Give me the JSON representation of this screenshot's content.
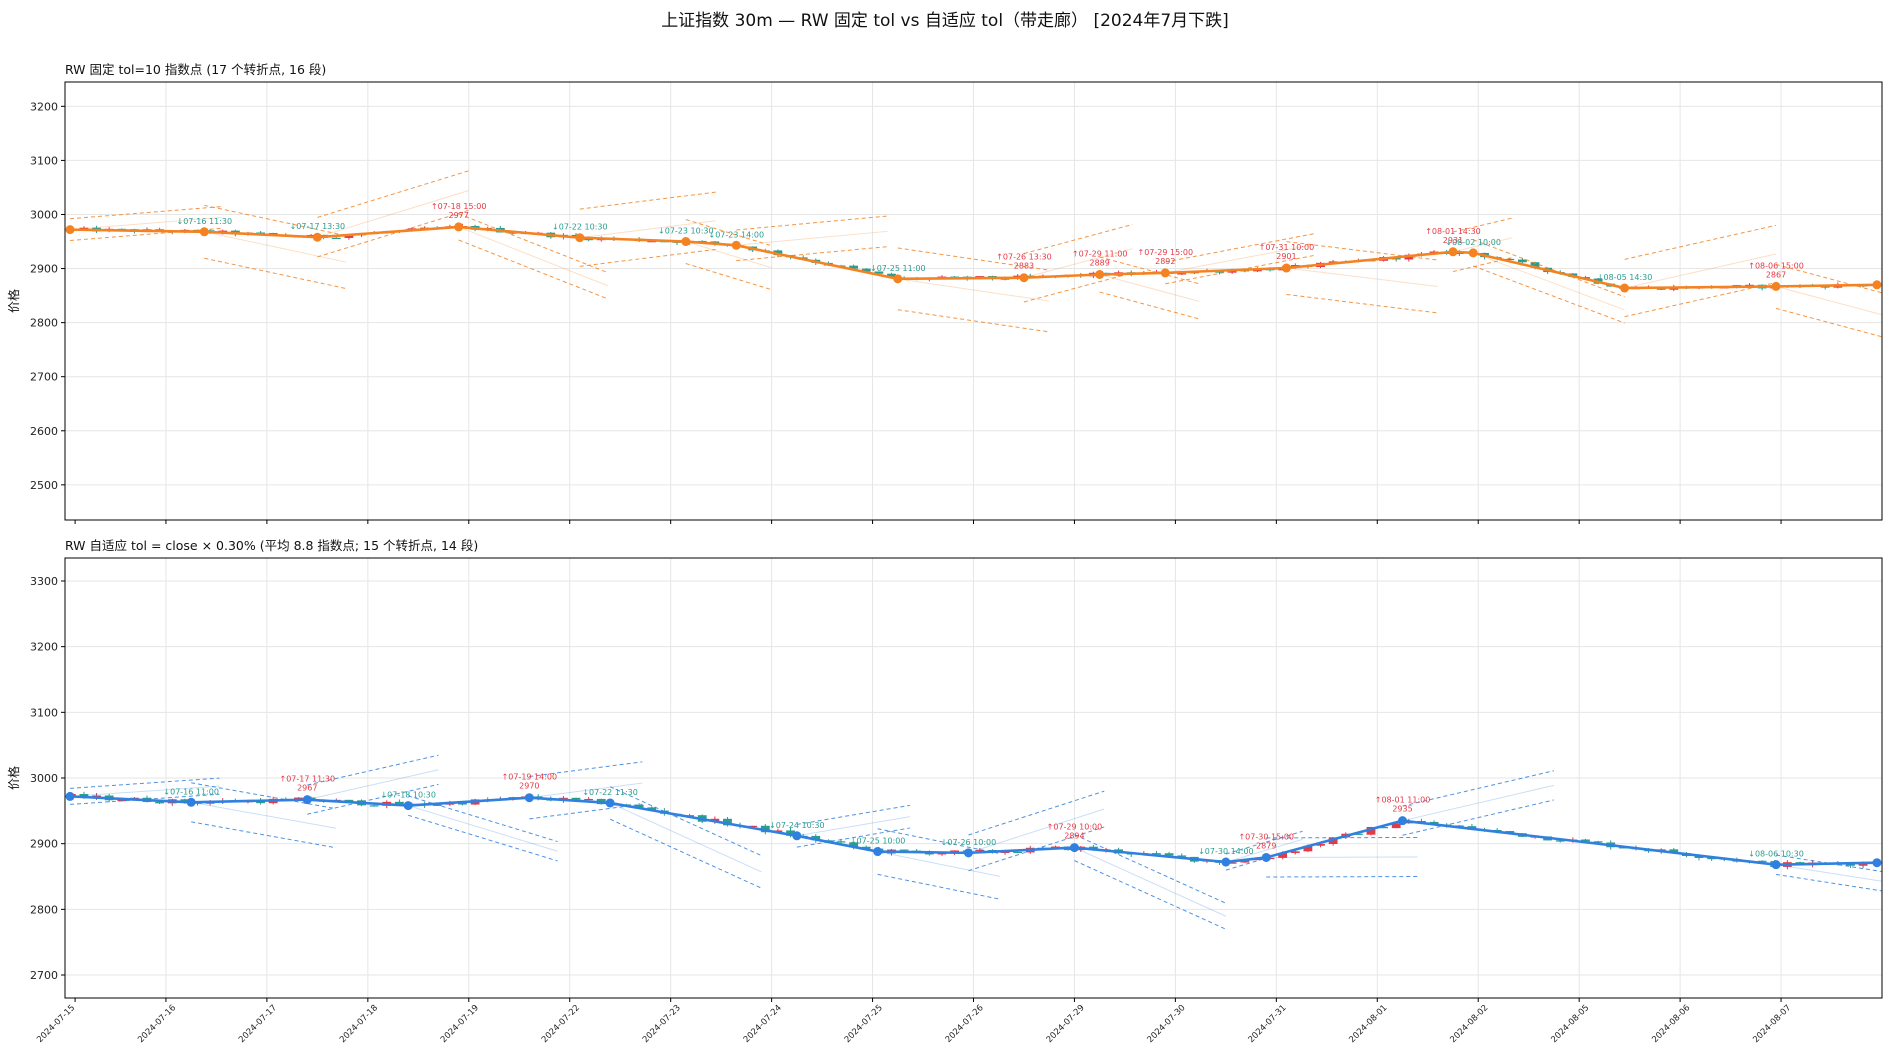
{
  "figure": {
    "title": "上证指数 30m — RW 固定 tol vs 自适应 tol（带走廊）  [2024年7月下跌]"
  },
  "colors": {
    "up": "#e63946",
    "down": "#2a9d8f",
    "fixed_line": "#f58220",
    "adaptive_line": "#2f80e0",
    "grid": "#e6e6e6",
    "axis": "#000000"
  },
  "chart_data": [
    {
      "type": "line",
      "title": "RW 固定 tol=10 指数点   (17 个转折点, 16 段)",
      "ylabel": "价格",
      "ylim": [
        2435,
        3245
      ],
      "yticks": [
        2500,
        2600,
        2700,
        2800,
        2900,
        3000,
        3100,
        3200
      ],
      "xlim": [
        0,
        18
      ],
      "grid": true,
      "line_color_key": "fixed_line",
      "x_tick_labels": [],
      "pivots": [
        {
          "x": 0.05,
          "y": 2972,
          "kind": "start",
          "label": ""
        },
        {
          "x": 1.38,
          "y": 2968,
          "kind": "low",
          "label": "↓07-16 11:30"
        },
        {
          "x": 2.5,
          "y": 2958,
          "kind": "low",
          "label": "↓07-17 13:30"
        },
        {
          "x": 3.9,
          "y": 2977,
          "kind": "high",
          "label": "↑07-18 15:00",
          "value_label": "2977"
        },
        {
          "x": 5.1,
          "y": 2957,
          "kind": "low",
          "label": "↓07-22 10:30"
        },
        {
          "x": 6.15,
          "y": 2950,
          "kind": "low",
          "label": "↓07-23 10:30"
        },
        {
          "x": 6.65,
          "y": 2943,
          "kind": "low",
          "label": "↓07-23 14:00"
        },
        {
          "x": 8.25,
          "y": 2881,
          "kind": "low",
          "label": "↓07-25 11:00"
        },
        {
          "x": 9.5,
          "y": 2883,
          "kind": "high",
          "label": "↑07-26 13:30",
          "value_label": "2883"
        },
        {
          "x": 10.25,
          "y": 2889,
          "kind": "high",
          "label": "↑07-29 11:00",
          "value_label": "2889"
        },
        {
          "x": 10.9,
          "y": 2892,
          "kind": "high",
          "label": "↑07-29 15:00",
          "value_label": "2892"
        },
        {
          "x": 12.1,
          "y": 2901,
          "kind": "high",
          "label": "↑07-31 10:00",
          "value_label": "2901"
        },
        {
          "x": 13.75,
          "y": 2931,
          "kind": "high",
          "label": "↑08-01 14:30",
          "value_label": "2931"
        },
        {
          "x": 13.95,
          "y": 2929,
          "kind": "low",
          "label": "↓08-02 10:00"
        },
        {
          "x": 15.45,
          "y": 2864,
          "kind": "low",
          "label": "↓08-05 14:30"
        },
        {
          "x": 16.95,
          "y": 2867,
          "kind": "high",
          "label": "↑08-06 15:00",
          "value_label": "2867"
        },
        {
          "x": 17.95,
          "y": 2870,
          "kind": "end",
          "label": ""
        }
      ],
      "corridor_width": 115,
      "corridor_color_key": "fixed_line"
    },
    {
      "type": "line",
      "title": "RW 自适应 tol = close × 0.30%   (平均 8.8 指数点; 15 个转折点, 14 段)",
      "ylabel": "价格",
      "ylim": [
        2665,
        3335
      ],
      "yticks": [
        2700,
        2800,
        2900,
        3000,
        3100,
        3200,
        3300
      ],
      "xlim": [
        0,
        18
      ],
      "grid": true,
      "line_color_key": "adaptive_line",
      "x_tick_labels": [
        "2024-07-15",
        "2024-07-16",
        "2024-07-17",
        "2024-07-18",
        "2024-07-19",
        "2024-07-22",
        "2024-07-23",
        "2024-07-24",
        "2024-07-25",
        "2024-07-26",
        "2024-07-29",
        "2024-07-30",
        "2024-07-31",
        "2024-08-01",
        "2024-08-02",
        "2024-08-05",
        "2024-08-06",
        "2024-08-07"
      ],
      "pivots": [
        {
          "x": 0.05,
          "y": 2972,
          "kind": "start",
          "label": ""
        },
        {
          "x": 1.25,
          "y": 2963,
          "kind": "low",
          "label": "↓07-16 11:00"
        },
        {
          "x": 2.4,
          "y": 2967,
          "kind": "high",
          "label": "↑07-17 11:30",
          "value_label": "2967"
        },
        {
          "x": 3.4,
          "y": 2958,
          "kind": "low",
          "label": "↓07-18 10:30"
        },
        {
          "x": 4.6,
          "y": 2970,
          "kind": "high",
          "label": "↑07-19 14:00",
          "value_label": "2970"
        },
        {
          "x": 5.4,
          "y": 2962,
          "kind": "low",
          "label": "↓07-22 11:30"
        },
        {
          "x": 7.25,
          "y": 2912,
          "kind": "low",
          "label": "↓07-24 10:30"
        },
        {
          "x": 8.05,
          "y": 2888,
          "kind": "low",
          "label": "↓07-25 10:00"
        },
        {
          "x": 8.95,
          "y": 2886,
          "kind": "low",
          "label": "↓07-26 10:00"
        },
        {
          "x": 10.0,
          "y": 2894,
          "kind": "high",
          "label": "↑07-29 10:00",
          "value_label": "2894"
        },
        {
          "x": 11.5,
          "y": 2872,
          "kind": "low",
          "label": "↓07-30 14:00"
        },
        {
          "x": 11.9,
          "y": 2879,
          "kind": "high",
          "label": "↑07-30 15:00",
          "value_label": "2879"
        },
        {
          "x": 13.25,
          "y": 2935,
          "kind": "high",
          "label": "↑08-01 11:00",
          "value_label": "2935"
        },
        {
          "x": 16.95,
          "y": 2868,
          "kind": "low",
          "label": "↓08-06 10:30"
        },
        {
          "x": 17.95,
          "y": 2871,
          "kind": "end",
          "label": ""
        }
      ],
      "corridor_width": 70,
      "corridor_color_key": "adaptive_line"
    }
  ]
}
